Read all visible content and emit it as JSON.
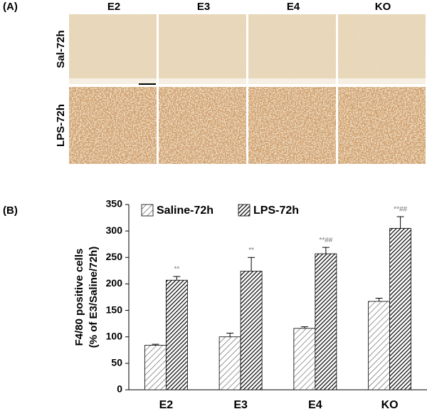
{
  "panel_a": {
    "label": "(A)",
    "columns": [
      "E2",
      "E3",
      "E4",
      "KO"
    ],
    "rows": [
      "Sal-72h",
      "LPS-72h"
    ]
  },
  "chart_data": {
    "type": "bar",
    "panel_label": "(B)",
    "y_label": [
      "F4/80 positive cells",
      "(% of E3/Saline/72h)"
    ],
    "categories": [
      "E2",
      "E3",
      "E4",
      "KO"
    ],
    "series": [
      {
        "name": "Saline-72h",
        "color": "#555555",
        "pattern": "sparse-hatch",
        "values": [
          84,
          100,
          116,
          167
        ],
        "errors": [
          2,
          7,
          3,
          6
        ]
      },
      {
        "name": "LPS-72h",
        "color": "#111111",
        "pattern": "dense-hatch",
        "values": [
          207,
          224,
          257,
          305
        ],
        "errors": [
          7,
          26,
          12,
          22
        ],
        "significance": [
          "**",
          "**",
          "**##",
          "**##"
        ]
      }
    ],
    "ylim": [
      0,
      350
    ],
    "yticks": [
      0,
      50,
      100,
      150,
      200,
      250,
      300,
      350
    ],
    "legend": "top-left"
  }
}
